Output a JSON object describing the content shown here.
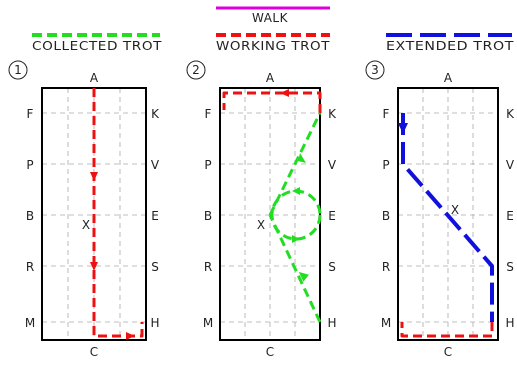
{
  "legend": {
    "collected_trot": "COLLECTED  TROT",
    "walk": "WALK",
    "working_trot": "WORKING  TROT",
    "extended_trot": "EXTENDED  TROT"
  },
  "colors": {
    "collected_trot": "#22dd22",
    "walk": "#dd00dd",
    "working_trot": "#ee1111",
    "extended_trot": "#1111dd",
    "arena_border": "#000000",
    "grid": "#999999"
  },
  "arenas": [
    {
      "number": "1",
      "top_letter": "A",
      "bottom_letter": "C",
      "left_letters": [
        "F",
        "P",
        "B",
        "R",
        "M"
      ],
      "right_letters": [
        "K",
        "V",
        "E",
        "S",
        "H"
      ],
      "center_letter": "X"
    },
    {
      "number": "2",
      "top_letter": "A",
      "bottom_letter": "C",
      "left_letters": [
        "F",
        "P",
        "B",
        "R",
        "M"
      ],
      "right_letters": [
        "K",
        "V",
        "E",
        "S",
        "H"
      ],
      "center_letter": "X"
    },
    {
      "number": "3",
      "top_letter": "A",
      "bottom_letter": "C",
      "left_letters": [
        "F",
        "P",
        "B",
        "R",
        "M"
      ],
      "right_letters": [
        "K",
        "V",
        "E",
        "S",
        "H"
      ],
      "center_letter": "X"
    }
  ]
}
